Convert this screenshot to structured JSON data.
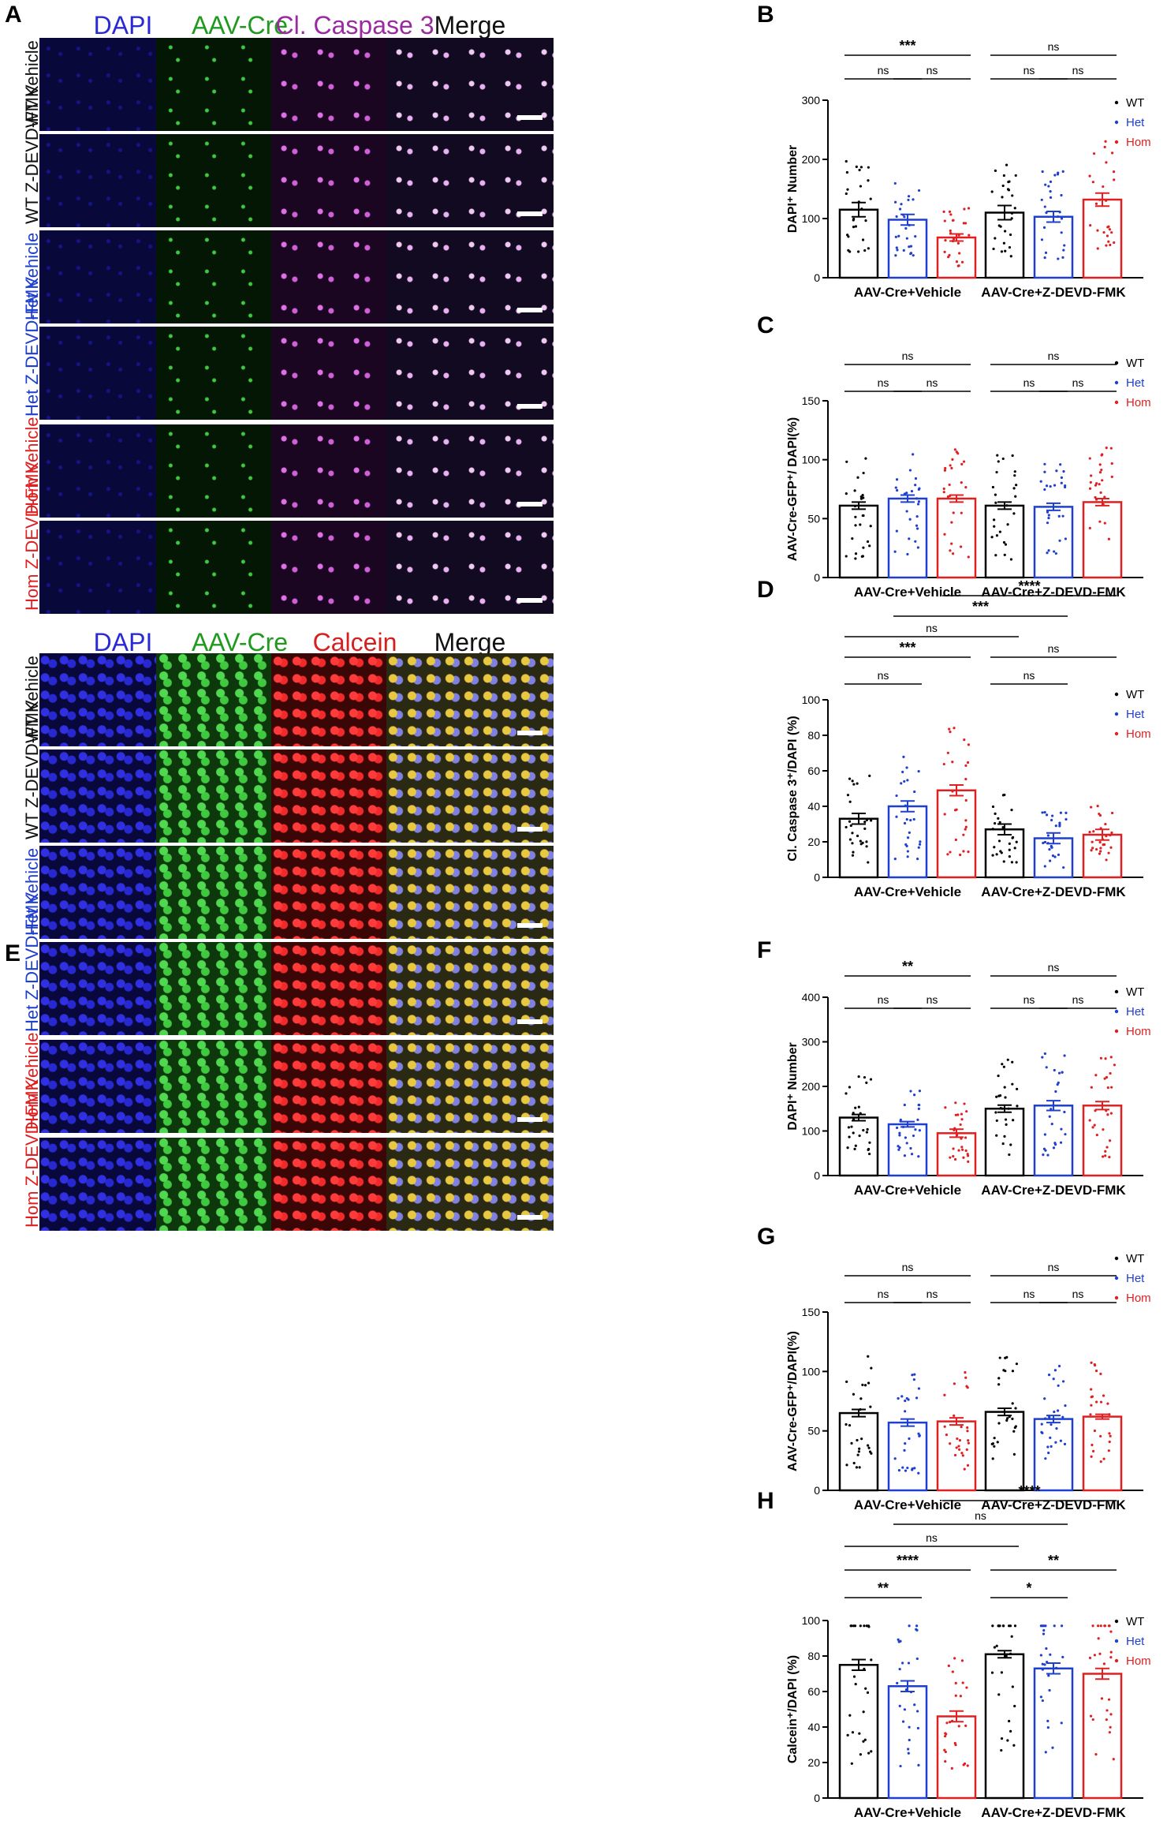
{
  "panels": {
    "A": {
      "letter": "A",
      "columns": [
        {
          "label": "DAPI",
          "color": "#2a2ad4"
        },
        {
          "label": "AAV-Cre",
          "color": "#1f9a1f"
        },
        {
          "label": "Cl. Caspase 3",
          "color": "#9a2aa0"
        },
        {
          "label": "Merge",
          "color": "#111111"
        }
      ],
      "rows": [
        {
          "label": "WT Vehicle",
          "color": "#111111"
        },
        {
          "label": "WT Z-DEVD-FMK",
          "color": "#111111"
        },
        {
          "label": "Het Vehicle",
          "color": "#1f3fcf"
        },
        {
          "label": "Het Z-DEVD-FMK",
          "color": "#1f3fcf"
        },
        {
          "label": "Hom Vehicle",
          "color": "#e02020"
        },
        {
          "label": "Hom Z-DEVD-FMK",
          "color": "#e02020"
        }
      ]
    },
    "E": {
      "letter": "E",
      "columns": [
        {
          "label": "DAPI",
          "color": "#2a2ad4"
        },
        {
          "label": "AAV-Cre",
          "color": "#1f9a1f"
        },
        {
          "label": "Calcein",
          "color": "#d42020"
        },
        {
          "label": "Merge",
          "color": "#111111"
        }
      ],
      "rows": [
        {
          "label": "WT Vehicle",
          "color": "#111111"
        },
        {
          "label": "WT Z-DEVD-FMK",
          "color": "#111111"
        },
        {
          "label": "Het Vehicle",
          "color": "#1f3fcf"
        },
        {
          "label": "Het Z-DEVD-FMK",
          "color": "#1f3fcf"
        },
        {
          "label": "Hom Vehicle",
          "color": "#e02020"
        },
        {
          "label": "Hom Z-DEVD-FMK",
          "color": "#e02020"
        }
      ]
    }
  },
  "legend": [
    {
      "name": "WT",
      "color": "#000000"
    },
    {
      "name": "Het",
      "color": "#1f3fcf"
    },
    {
      "name": "Hom",
      "color": "#e02020"
    }
  ],
  "chart_data": [
    {
      "letter": "B",
      "type": "bar",
      "ylabel": "DAPI⁺ Number",
      "ylim": [
        0,
        300
      ],
      "yticks": [
        0,
        100,
        200,
        300
      ],
      "groups": [
        "AAV-Cre+Vehicle",
        "AAV-Cre+Z-DEVD-FMK"
      ],
      "series": [
        {
          "name": "WT",
          "values": [
            115,
            110
          ],
          "sem": [
            12,
            12
          ]
        },
        {
          "name": "Het",
          "values": [
            98,
            103
          ],
          "sem": [
            9,
            9
          ]
        },
        {
          "name": "Hom",
          "values": [
            68,
            132
          ],
          "sem": [
            6,
            11
          ]
        }
      ],
      "comparisons": [
        {
          "group": 0,
          "from": 0,
          "to": 2,
          "label": "***",
          "level": 2
        },
        {
          "group": 0,
          "from": 0,
          "to": 1,
          "label": "ns",
          "level": 1
        },
        {
          "group": 0,
          "from": 1,
          "to": 2,
          "label": "ns",
          "level": 1
        },
        {
          "group": 1,
          "from": 0,
          "to": 2,
          "label": "ns",
          "level": 2
        },
        {
          "group": 1,
          "from": 0,
          "to": 1,
          "label": "ns",
          "level": 1
        },
        {
          "group": 1,
          "from": 1,
          "to": 2,
          "label": "ns",
          "level": 1
        }
      ],
      "cross": []
    },
    {
      "letter": "C",
      "type": "bar",
      "ylabel": "AAV-Cre-GFP⁺/ DAPI(%)",
      "ylim": [
        0,
        150
      ],
      "yticks": [
        0,
        50,
        100,
        150
      ],
      "groups": [
        "AAV-Cre+Vehicle",
        "AAV-Cre+Z-DEVD-FMK"
      ],
      "series": [
        {
          "name": "WT",
          "values": [
            61,
            61
          ],
          "sem": [
            3,
            3
          ]
        },
        {
          "name": "Het",
          "values": [
            67,
            60
          ],
          "sem": [
            3,
            3
          ]
        },
        {
          "name": "Hom",
          "values": [
            67,
            64
          ],
          "sem": [
            3,
            3
          ]
        }
      ],
      "comparisons": [
        {
          "group": 0,
          "from": 0,
          "to": 2,
          "label": "ns",
          "level": 2
        },
        {
          "group": 0,
          "from": 0,
          "to": 1,
          "label": "ns",
          "level": 1
        },
        {
          "group": 0,
          "from": 1,
          "to": 2,
          "label": "ns",
          "level": 1
        },
        {
          "group": 1,
          "from": 0,
          "to": 2,
          "label": "ns",
          "level": 2
        },
        {
          "group": 1,
          "from": 0,
          "to": 1,
          "label": "ns",
          "level": 1
        },
        {
          "group": 1,
          "from": 1,
          "to": 2,
          "label": "ns",
          "level": 1
        }
      ],
      "cross": []
    },
    {
      "letter": "D",
      "type": "bar",
      "ylabel": "Cl. Caspase 3⁺/DAPI (%)",
      "ylim": [
        0,
        100
      ],
      "yticks": [
        0,
        20,
        40,
        60,
        80,
        100
      ],
      "groups": [
        "AAV-Cre+Vehicle",
        "AAV-Cre+Z-DEVD-FMK"
      ],
      "series": [
        {
          "name": "WT",
          "values": [
            33,
            27
          ],
          "sem": [
            3,
            3
          ]
        },
        {
          "name": "Het",
          "values": [
            40,
            22
          ],
          "sem": [
            3,
            3
          ]
        },
        {
          "name": "Hom",
          "values": [
            49,
            24
          ],
          "sem": [
            3,
            3
          ]
        }
      ],
      "comparisons": [
        {
          "group": 0,
          "from": 0,
          "to": 2,
          "label": "***",
          "level": 2
        },
        {
          "group": 0,
          "from": 0,
          "to": 1,
          "label": "ns",
          "level": 1
        },
        {
          "group": 1,
          "from": 0,
          "to": 2,
          "label": "ns",
          "level": 2
        },
        {
          "group": 1,
          "from": 0,
          "to": 1,
          "label": "ns",
          "level": 1
        }
      ],
      "cross": [
        {
          "from": [
            0,
            0
          ],
          "to": [
            1,
            0
          ],
          "label": "ns",
          "level": 3
        },
        {
          "from": [
            0,
            1
          ],
          "to": [
            1,
            1
          ],
          "label": "***",
          "level": 4
        },
        {
          "from": [
            0,
            2
          ],
          "to": [
            1,
            2
          ],
          "label": "****",
          "level": 5
        }
      ]
    },
    {
      "letter": "F",
      "type": "bar",
      "ylabel": "DAPI⁺ Number",
      "ylim": [
        0,
        400
      ],
      "yticks": [
        0,
        100,
        200,
        300,
        400
      ],
      "groups": [
        "AAV-Cre+Vehicle",
        "AAV-Cre+Z-DEVD-FMK"
      ],
      "series": [
        {
          "name": "WT",
          "values": [
            130,
            150
          ],
          "sem": [
            7,
            8
          ]
        },
        {
          "name": "Het",
          "values": [
            115,
            157
          ],
          "sem": [
            6,
            11
          ]
        },
        {
          "name": "Hom",
          "values": [
            95,
            157
          ],
          "sem": [
            9,
            9
          ]
        }
      ],
      "comparisons": [
        {
          "group": 0,
          "from": 0,
          "to": 2,
          "label": "**",
          "level": 2
        },
        {
          "group": 0,
          "from": 0,
          "to": 1,
          "label": "ns",
          "level": 1
        },
        {
          "group": 0,
          "from": 1,
          "to": 2,
          "label": "ns",
          "level": 1
        },
        {
          "group": 1,
          "from": 0,
          "to": 2,
          "label": "ns",
          "level": 2
        },
        {
          "group": 1,
          "from": 0,
          "to": 1,
          "label": "ns",
          "level": 1
        },
        {
          "group": 1,
          "from": 1,
          "to": 2,
          "label": "ns",
          "level": 1
        }
      ],
      "cross": []
    },
    {
      "letter": "G",
      "type": "bar",
      "ylabel": "AAV-Cre-GFP⁺/DAPI(%)",
      "ylim": [
        0,
        150
      ],
      "yticks": [
        0,
        50,
        100,
        150
      ],
      "groups": [
        "AAV-Cre+Vehicle",
        "AAV-Cre+Z-DEVD-FMK"
      ],
      "series": [
        {
          "name": "WT",
          "values": [
            65,
            66
          ],
          "sem": [
            3,
            3
          ]
        },
        {
          "name": "Het",
          "values": [
            57,
            60
          ],
          "sem": [
            3,
            3
          ]
        },
        {
          "name": "Hom",
          "values": [
            58,
            62
          ],
          "sem": [
            3,
            2
          ]
        }
      ],
      "comparisons": [
        {
          "group": 0,
          "from": 0,
          "to": 2,
          "label": "ns",
          "level": 2
        },
        {
          "group": 0,
          "from": 0,
          "to": 1,
          "label": "ns",
          "level": 1
        },
        {
          "group": 0,
          "from": 1,
          "to": 2,
          "label": "ns",
          "level": 1
        },
        {
          "group": 1,
          "from": 0,
          "to": 2,
          "label": "ns",
          "level": 2
        },
        {
          "group": 1,
          "from": 0,
          "to": 1,
          "label": "ns",
          "level": 1
        },
        {
          "group": 1,
          "from": 1,
          "to": 2,
          "label": "ns",
          "level": 1
        }
      ],
      "cross": []
    },
    {
      "letter": "H",
      "type": "bar",
      "ylabel": "Calcein⁺/DAPI (%)",
      "ylim": [
        0,
        100
      ],
      "yticks": [
        0,
        20,
        40,
        60,
        80,
        100
      ],
      "groups": [
        "AAV-Cre+Vehicle",
        "AAV-Cre+Z-DEVD-FMK"
      ],
      "series": [
        {
          "name": "WT",
          "values": [
            75,
            81
          ],
          "sem": [
            3,
            2
          ]
        },
        {
          "name": "Het",
          "values": [
            63,
            73
          ],
          "sem": [
            3,
            3
          ]
        },
        {
          "name": "Hom",
          "values": [
            46,
            70
          ],
          "sem": [
            3,
            3
          ]
        }
      ],
      "comparisons": [
        {
          "group": 0,
          "from": 0,
          "to": 2,
          "label": "****",
          "level": 2
        },
        {
          "group": 0,
          "from": 0,
          "to": 1,
          "label": "**",
          "level": 1
        },
        {
          "group": 1,
          "from": 0,
          "to": 2,
          "label": "**",
          "level": 2
        },
        {
          "group": 1,
          "from": 0,
          "to": 1,
          "label": "*",
          "level": 1
        }
      ],
      "cross": [
        {
          "from": [
            0,
            0
          ],
          "to": [
            1,
            0
          ],
          "label": "ns",
          "level": 3
        },
        {
          "from": [
            0,
            1
          ],
          "to": [
            1,
            1
          ],
          "label": "ns",
          "level": 4
        },
        {
          "from": [
            0,
            2
          ],
          "to": [
            1,
            2
          ],
          "label": "****",
          "level": 5
        }
      ]
    }
  ]
}
